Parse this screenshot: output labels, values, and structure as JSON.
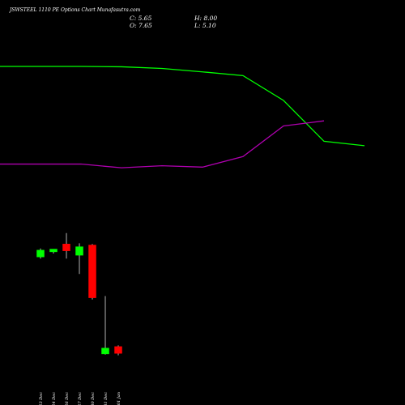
{
  "header": {
    "title": "JSWSTEEL 1110 PE Options Chart Munafasutra.com",
    "close_label": "C: 5.65",
    "high_label": "H: 8.00",
    "open_label": "O: 7.65",
    "low_label": "L: 5.10"
  },
  "colors": {
    "background": "#000000",
    "up_candle": "#00ff00",
    "down_candle": "#ff0000",
    "green_line": "#00ff00",
    "purple_line": "#b000b0",
    "wick": "#ffffff"
  },
  "chart_data": {
    "type": "candlestick",
    "categories": [
      "23 Dec",
      "24 Dec",
      "26 Dec",
      "27 Dec",
      "30 Dec",
      "31 Dec",
      "01 Jan"
    ],
    "candles": [
      {
        "date": "23 Dec",
        "open": 34.0,
        "high": 36.5,
        "low": 33.5,
        "close": 36.0
      },
      {
        "date": "24 Dec",
        "open": 35.5,
        "high": 36.0,
        "low": 35.0,
        "close": 36.3
      },
      {
        "date": "26 Dec",
        "open": 37.8,
        "high": 41.0,
        "low": 33.5,
        "close": 35.8
      },
      {
        "date": "27 Dec",
        "open": 34.5,
        "high": 38.0,
        "low": 29.0,
        "close": 37.0
      },
      {
        "date": "30 Dec",
        "open": 37.5,
        "high": 37.8,
        "low": 21.5,
        "close": 22.0
      },
      {
        "date": "31 Dec",
        "open": 5.5,
        "high": 22.5,
        "low": 5.3,
        "close": 7.2
      },
      {
        "date": "01 Jan",
        "open": 7.65,
        "high": 8.0,
        "low": 5.1,
        "close": 5.65
      }
    ],
    "series": [
      {
        "color": "#00ff00",
        "values": [
          [
            -2,
            90
          ],
          [
            0,
            90
          ],
          [
            1,
            89.9
          ],
          [
            2,
            89.4
          ],
          [
            3,
            88.4
          ],
          [
            4,
            87.3
          ],
          [
            5,
            80
          ],
          [
            6,
            68
          ],
          [
            7,
            66.7
          ]
        ]
      },
      {
        "color": "#b000b0",
        "values": [
          [
            -2,
            61.3
          ],
          [
            0,
            61.3
          ],
          [
            1,
            60.2
          ],
          [
            2,
            60.8
          ],
          [
            3,
            60.4
          ],
          [
            4,
            63.5
          ],
          [
            5,
            72.5
          ],
          [
            6,
            74
          ]
        ]
      }
    ],
    "ylim": [
      0,
      100
    ]
  }
}
